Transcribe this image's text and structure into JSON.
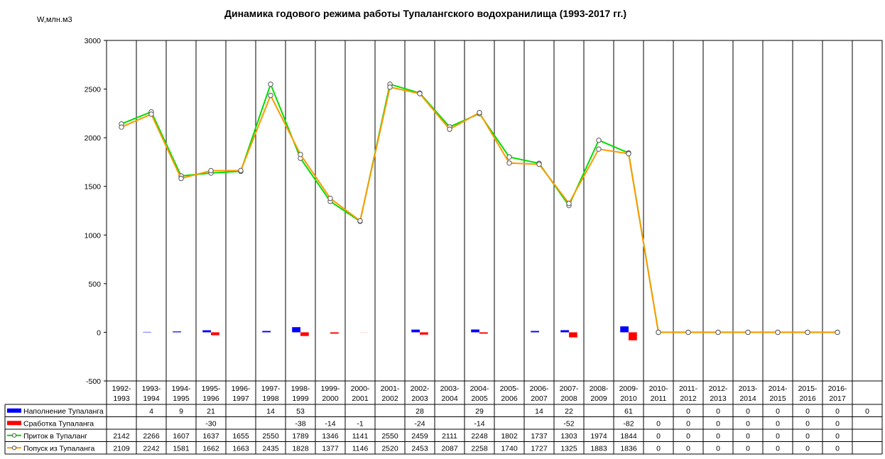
{
  "chart_data": {
    "type": "line",
    "title": "Динамика годового режима работы Тупалангского водохранилища (1993-2017 гг.)",
    "ylabel": "W,млн.м3",
    "ylim": [
      -500,
      3000
    ],
    "yticks": [
      "3000",
      "2500",
      "2000",
      "1500",
      "1000",
      "500",
      "0",
      "-500"
    ],
    "grid": true,
    "legend": "data-table-left",
    "categories": [
      [
        "1992-",
        "1993"
      ],
      [
        "1993-",
        "1994"
      ],
      [
        "1994-",
        "1995"
      ],
      [
        "1995-",
        "1996"
      ],
      [
        "1996-",
        "1997"
      ],
      [
        "1997-",
        "1998"
      ],
      [
        "1998-",
        "1999"
      ],
      [
        "1999-",
        "2000"
      ],
      [
        "2000-",
        "2001"
      ],
      [
        "2001-",
        "2002"
      ],
      [
        "2002-",
        "2003"
      ],
      [
        "2003-",
        "2004"
      ],
      [
        "2004-",
        "2005"
      ],
      [
        "2005-",
        "2006"
      ],
      [
        "2006-",
        "2007"
      ],
      [
        "2007-",
        "2008"
      ],
      [
        "2008-",
        "2009"
      ],
      [
        "2009-",
        "2010"
      ],
      [
        "2010-",
        "2011"
      ],
      [
        "2011-",
        "2012"
      ],
      [
        "2012-",
        "2013"
      ],
      [
        "2013-",
        "2014"
      ],
      [
        "2014-",
        "2015"
      ],
      [
        "2015-",
        "2016"
      ],
      [
        "2016-",
        "2017"
      ],
      [
        "",
        ""
      ]
    ],
    "series": [
      {
        "name": "Наполнение Тупаланга",
        "kind": "bar",
        "color": "#0000ff",
        "labels": [
          "",
          "4",
          "9",
          "21",
          "",
          "14",
          "53",
          "",
          "",
          "",
          "28",
          "",
          "29",
          "",
          "14",
          "22",
          "",
          "61",
          "",
          "0",
          "0",
          "0",
          "0",
          "0",
          "0",
          "0"
        ],
        "values": [
          null,
          4,
          9,
          21,
          null,
          14,
          53,
          null,
          null,
          null,
          28,
          null,
          29,
          null,
          14,
          22,
          null,
          61,
          null,
          0,
          0,
          0,
          0,
          0,
          0,
          0
        ]
      },
      {
        "name": "Сработка Тупаланга",
        "kind": "bar",
        "color": "#ff0000",
        "labels": [
          "",
          "",
          "",
          "-30",
          "",
          "",
          "-38",
          "-14",
          "-1",
          "",
          "-24",
          "",
          "-14",
          "",
          "",
          "-52",
          "",
          "-82",
          "0",
          "0",
          "0",
          "0",
          "0",
          "0",
          "0",
          ""
        ],
        "values": [
          null,
          null,
          null,
          -30,
          null,
          null,
          -38,
          -14,
          -1,
          null,
          -24,
          null,
          -14,
          null,
          null,
          -52,
          null,
          -82,
          0,
          0,
          0,
          0,
          0,
          0,
          0,
          null
        ]
      },
      {
        "name": "Приток в Тупаланг",
        "kind": "line",
        "color": "#00dd00",
        "labels": [
          "2142",
          "2266",
          "1607",
          "1637",
          "1655",
          "2550",
          "1789",
          "1346",
          "1141",
          "2550",
          "2459",
          "2111",
          "2248",
          "1802",
          "1737",
          "1303",
          "1974",
          "1844",
          "0",
          "0",
          "0",
          "0",
          "0",
          "0",
          "0",
          ""
        ],
        "values": [
          2142,
          2266,
          1607,
          1637,
          1655,
          2550,
          1789,
          1346,
          1141,
          2550,
          2459,
          2111,
          2248,
          1802,
          1737,
          1303,
          1974,
          1844,
          0,
          0,
          0,
          0,
          0,
          0,
          0,
          null
        ]
      },
      {
        "name": "Попуск из Тупаланга",
        "kind": "line",
        "color": "#ff9900",
        "labels": [
          "2109",
          "2242",
          "1581",
          "1662",
          "1663",
          "2435",
          "1828",
          "1377",
          "1146",
          "2520",
          "2453",
          "2087",
          "2258",
          "1740",
          "1727",
          "1325",
          "1883",
          "1836",
          "0",
          "0",
          "0",
          "0",
          "0",
          "0",
          "0",
          ""
        ],
        "values": [
          2109,
          2242,
          1581,
          1662,
          1663,
          2435,
          1828,
          1377,
          1146,
          2520,
          2453,
          2087,
          2258,
          1740,
          1727,
          1325,
          1883,
          1836,
          0,
          0,
          0,
          0,
          0,
          0,
          0,
          null
        ]
      }
    ]
  }
}
